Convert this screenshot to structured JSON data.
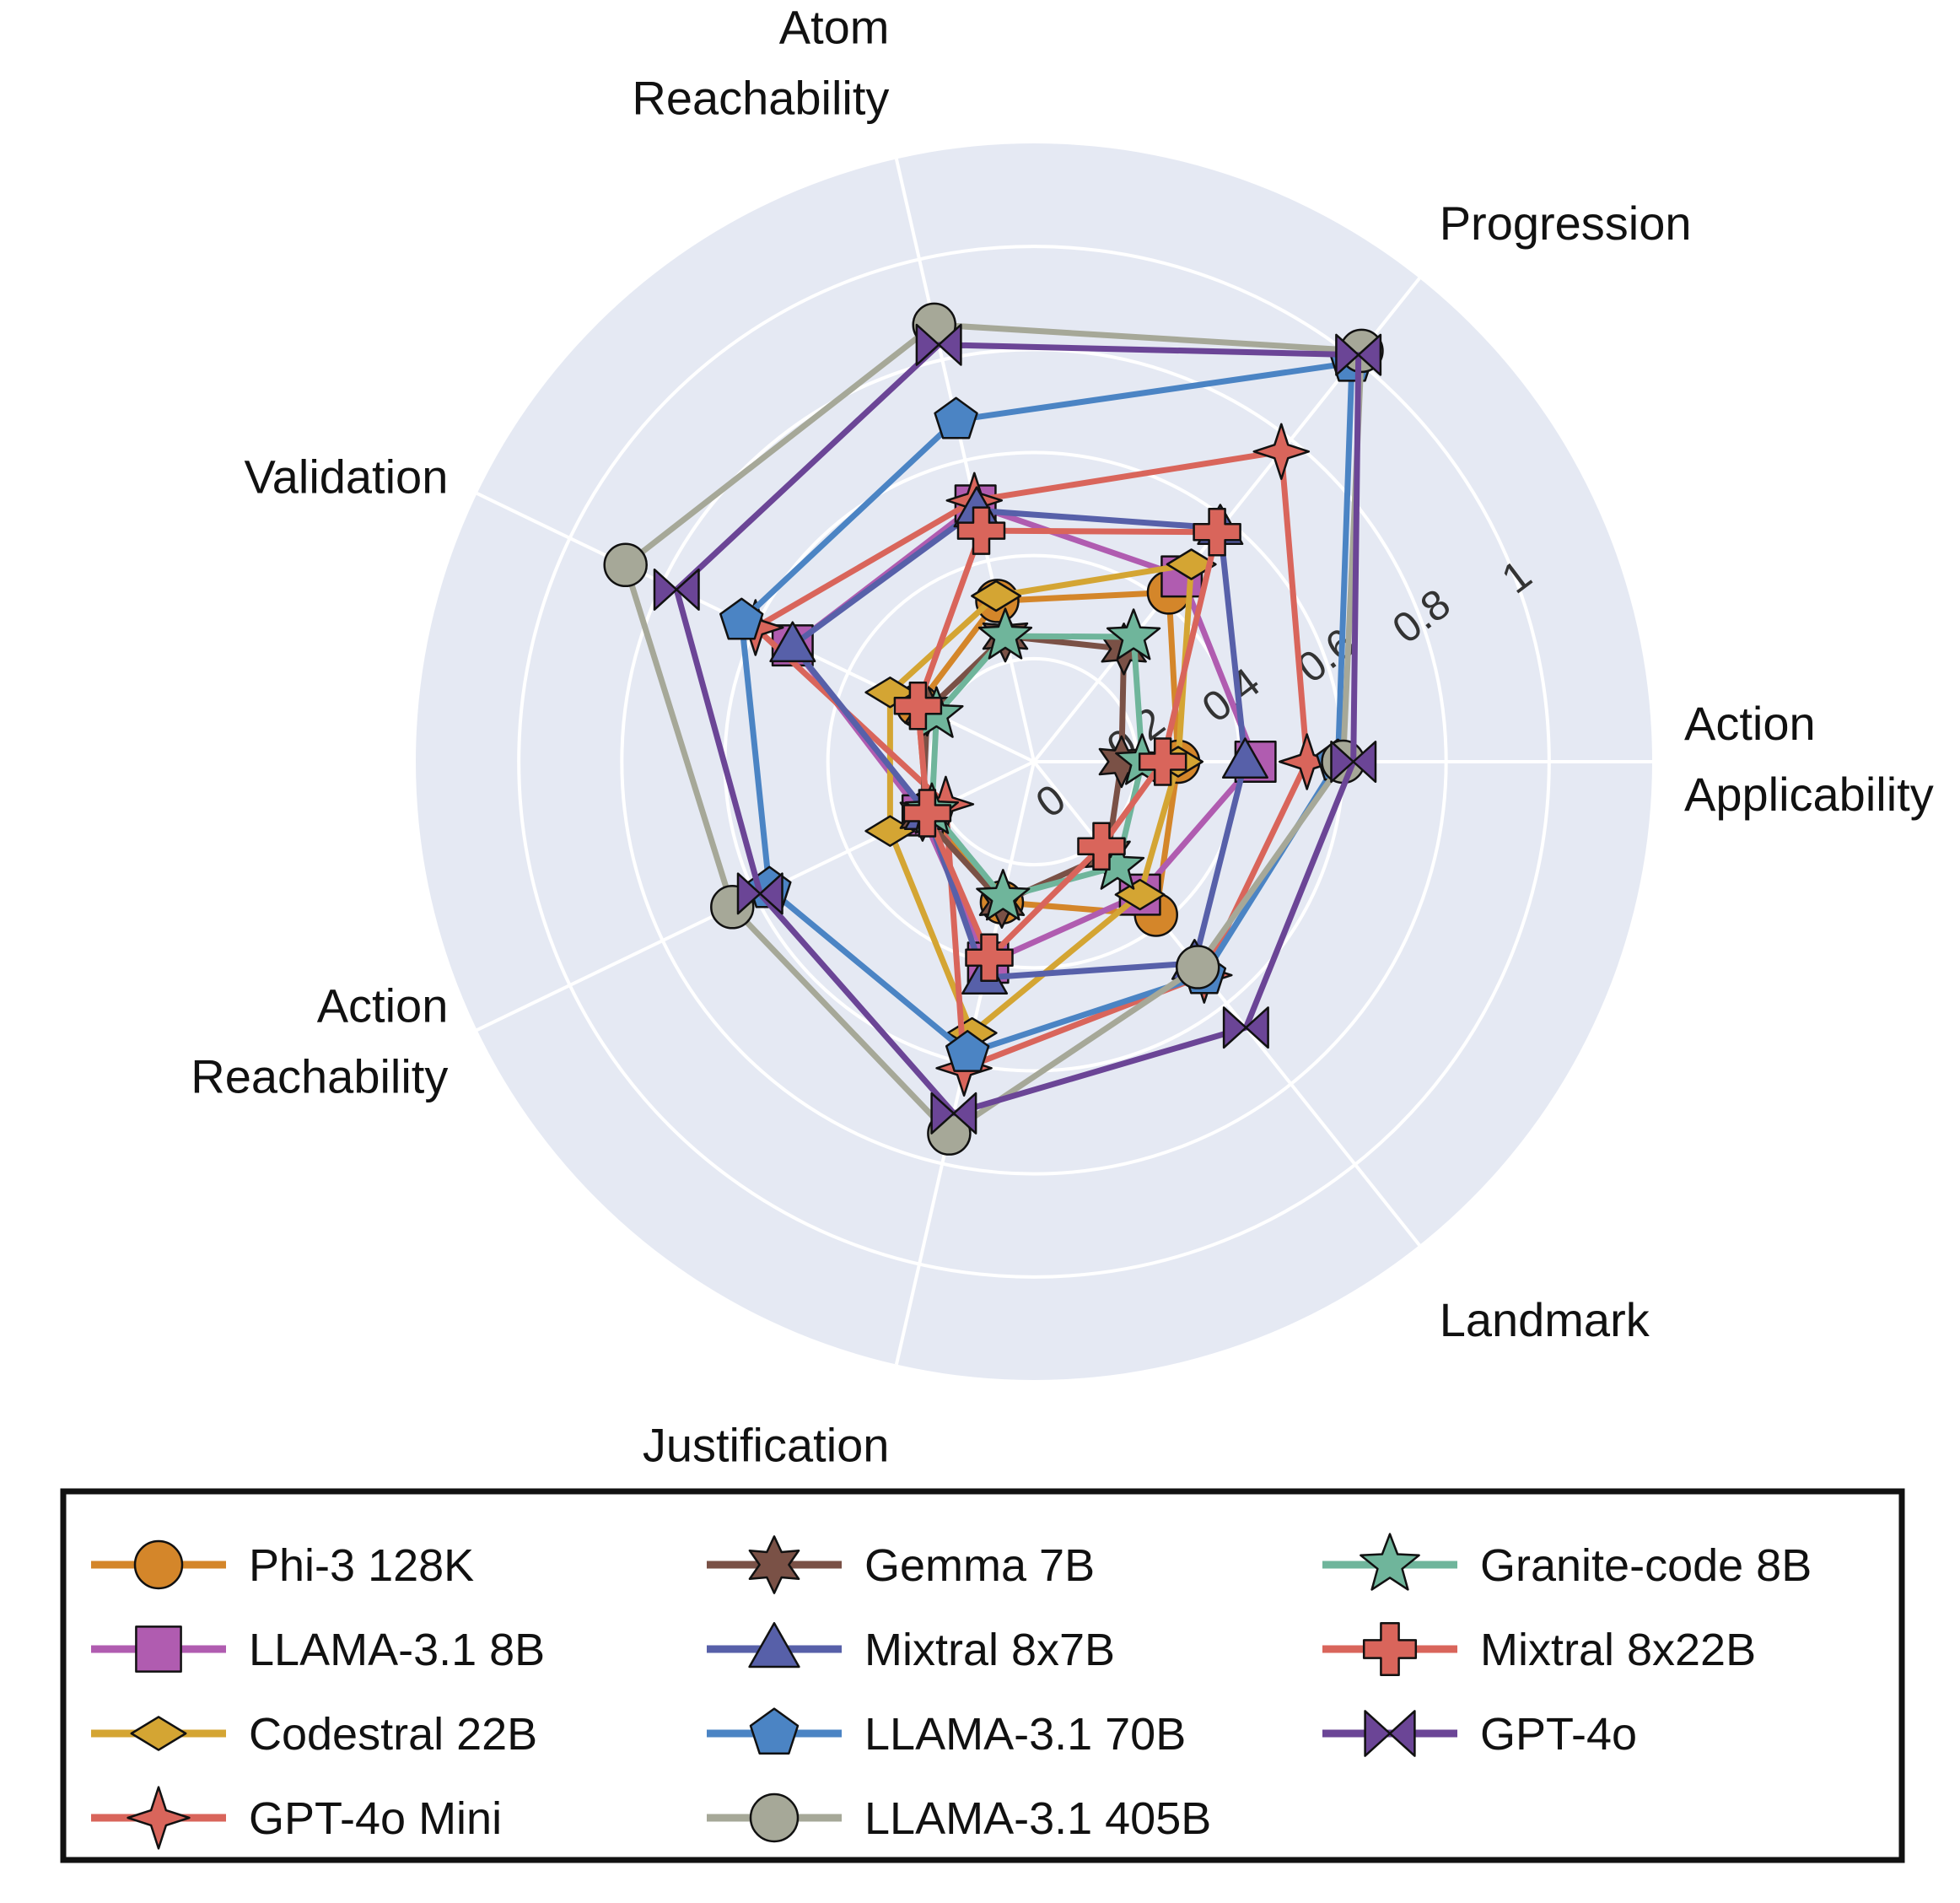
{
  "chart_data": {
    "type": "radar",
    "axes": [
      {
        "lines": [
          "Action",
          "Applicability"
        ]
      },
      {
        "lines": [
          "Progression"
        ]
      },
      {
        "lines": [
          "Atom",
          "Reachability"
        ]
      },
      {
        "lines": [
          "Validation"
        ]
      },
      {
        "lines": [
          "Action",
          "Reachability"
        ]
      },
      {
        "lines": [
          "Justification"
        ]
      },
      {
        "lines": [
          "Landmark"
        ]
      }
    ],
    "ticks": [
      0,
      0.2,
      0.4,
      0.6,
      0.8,
      1
    ],
    "tick_labels": [
      "0",
      "0.2",
      "0.4",
      "0.6",
      "0.8",
      "1"
    ],
    "rlim": [
      0,
      1.2
    ],
    "grid": true,
    "legend_position": "bottom",
    "series": [
      {
        "name": "Phi-3 128K",
        "color": "#d4862a",
        "marker": "circle",
        "values": [
          0.28,
          0.42,
          0.32,
          0.25,
          0.23,
          0.28,
          0.38
        ]
      },
      {
        "name": "LLAMA-3.1 8B",
        "color": "#b05cb0",
        "marker": "square",
        "values": [
          0.43,
          0.46,
          0.51,
          0.52,
          0.24,
          0.4,
          0.33
        ]
      },
      {
        "name": "Codestral 22B",
        "color": "#d4a533",
        "marker": "diamond",
        "values": [
          0.28,
          0.49,
          0.33,
          0.31,
          0.31,
          0.54,
          0.33
        ]
      },
      {
        "name": "GPT-4o Mini",
        "color": "#d9655b",
        "marker": "star4",
        "values": [
          0.53,
          0.77,
          0.52,
          0.6,
          0.19,
          0.61,
          0.53
        ]
      },
      {
        "name": "Gemma 7B",
        "color": "#7a5146",
        "marker": "star6",
        "values": [
          0.17,
          0.28,
          0.25,
          0.23,
          0.24,
          0.28,
          0.23
        ]
      },
      {
        "name": "Mixtral 8x7B",
        "color": "#5760a9",
        "marker": "triangle",
        "values": [
          0.41,
          0.58,
          0.5,
          0.52,
          0.23,
          0.43,
          0.5
        ]
      },
      {
        "name": "LLAMA-3.1 70B",
        "color": "#4b84c4",
        "marker": "pentagon",
        "values": [
          0.59,
          0.99,
          0.68,
          0.63,
          0.57,
          0.58,
          0.53
        ]
      },
      {
        "name": "LLAMA-3.1 405B",
        "color": "#a6a898",
        "marker": "circle",
        "values": [
          0.6,
          1.02,
          0.87,
          0.88,
          0.65,
          0.74,
          0.51
        ]
      },
      {
        "name": "Granite-code 8B",
        "color": "#6fb59b",
        "marker": "star5",
        "values": [
          0.21,
          0.31,
          0.25,
          0.21,
          0.22,
          0.27,
          0.26
        ]
      },
      {
        "name": "Mixtral 8x22B",
        "color": "#d9655b",
        "marker": "plus",
        "values": [
          0.25,
          0.57,
          0.46,
          0.25,
          0.23,
          0.39,
          0.21
        ]
      },
      {
        "name": "GPT-4o",
        "color": "#6b4596",
        "marker": "bowtie",
        "values": [
          0.62,
          1.01,
          0.83,
          0.77,
          0.59,
          0.7,
          0.66
        ]
      }
    ],
    "legend_columns": [
      [
        "Phi-3 128K",
        "LLAMA-3.1 8B",
        "Codestral 22B",
        "GPT-4o Mini"
      ],
      [
        "Gemma 7B",
        "Mixtral 8x7B",
        "LLAMA-3.1 70B",
        "LLAMA-3.1 405B"
      ],
      [
        "Granite-code 8B",
        "Mixtral 8x22B",
        "GPT-4o"
      ]
    ]
  }
}
